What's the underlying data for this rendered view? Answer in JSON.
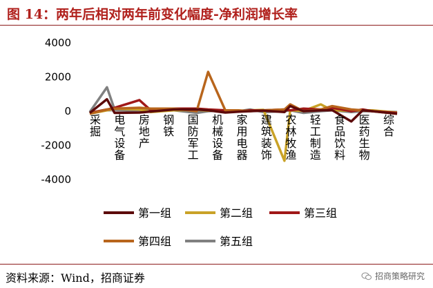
{
  "title": "图 14：两年后相对两年前变化幅度-净利润增长率",
  "source": "资料来源：Wind，招商证券",
  "watermark": "招商策略研究",
  "chart_data": {
    "type": "line",
    "title": "",
    "xlabel": "",
    "ylabel": "",
    "ylim": [
      -4000,
      4000
    ],
    "yticks": [
      4000,
      2000,
      0,
      -2000,
      -4000
    ],
    "grid": false,
    "legend_position": "bottom",
    "categories": [
      "采掘",
      "电气设备",
      "房地产",
      "钢铁",
      "国防军工",
      "机械设备",
      "家用电器",
      "建筑装饰",
      "农林牧渔",
      "轻工制造",
      "食品饮料",
      "医药生物",
      "综合"
    ],
    "x": [
      0,
      0.9,
      1.3,
      2.6,
      3.2,
      4.4,
      5.6,
      6.2,
      7.1,
      7.8,
      8.4,
      9.1,
      10.2,
      10.5,
      11.2,
      12.1,
      12.7,
      13.7,
      14.3,
      14.8,
      16.1
    ],
    "series": [
      {
        "name": "第一组",
        "color": "#5c0a0a",
        "values": [
          -100,
          700,
          -100,
          -80,
          -20,
          100,
          100,
          50,
          -80,
          -30,
          0,
          30,
          -50,
          300,
          0,
          50,
          60,
          -600,
          50,
          0,
          -150
        ]
      },
      {
        "name": "第二组",
        "color": "#c9a227",
        "values": [
          -150,
          50,
          150,
          100,
          -50,
          50,
          80,
          30,
          20,
          0,
          50,
          80,
          -2900,
          50,
          20,
          400,
          50,
          30,
          50,
          50,
          -80
        ]
      },
      {
        "name": "第三组",
        "color": "#a01818",
        "values": [
          -100,
          100,
          200,
          650,
          50,
          150,
          150,
          100,
          50,
          0,
          50,
          50,
          100,
          50,
          150,
          100,
          200,
          0,
          100,
          0,
          -100
        ]
      },
      {
        "name": "第四组",
        "color": "#b8651c",
        "values": [
          -150,
          100,
          150,
          200,
          150,
          150,
          0,
          2300,
          50,
          50,
          0,
          50,
          100,
          400,
          0,
          100,
          300,
          100,
          50,
          0,
          -150
        ]
      },
      {
        "name": "第五组",
        "color": "#808080",
        "values": [
          -50,
          1400,
          100,
          0,
          100,
          50,
          -100,
          0,
          50,
          0,
          100,
          -50,
          0,
          50,
          -100,
          0,
          50,
          -50,
          0,
          0,
          -50
        ]
      }
    ]
  }
}
